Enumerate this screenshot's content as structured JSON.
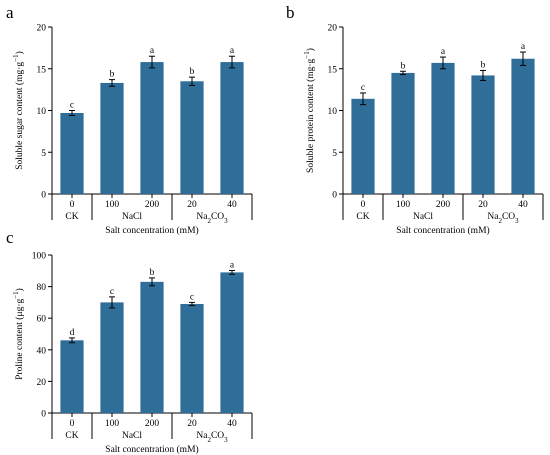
{
  "bar_color": "#2e6e99",
  "chart_data": [
    {
      "type": "bar",
      "panel": "a",
      "categories": [
        "0",
        "100",
        "200",
        "20",
        "40"
      ],
      "values": [
        9.7,
        13.3,
        15.8,
        13.5,
        15.8
      ],
      "errors": [
        0.3,
        0.4,
        0.7,
        0.5,
        0.7
      ],
      "significance": [
        "c",
        "b",
        "a",
        "b",
        "a"
      ],
      "groups": [
        {
          "label": "CK",
          "from": 0,
          "to": 0
        },
        {
          "label": "NaCl",
          "from": 1,
          "to": 2
        },
        {
          "label": "Na2CO3",
          "from": 3,
          "to": 4
        }
      ],
      "ylabel": "Soluble sugar content (mg·g⁻¹)",
      "xlabel": "Salt concentration (mM)",
      "ylim": [
        0,
        20
      ],
      "yticks": [
        0,
        5,
        10,
        15,
        20
      ]
    },
    {
      "type": "bar",
      "panel": "b",
      "categories": [
        "0",
        "100",
        "200",
        "20",
        "40"
      ],
      "values": [
        11.4,
        14.5,
        15.7,
        14.2,
        16.2
      ],
      "errors": [
        0.7,
        0.2,
        0.7,
        0.6,
        0.8
      ],
      "significance": [
        "c",
        "b",
        "a",
        "b",
        "a"
      ],
      "groups": [
        {
          "label": "CK",
          "from": 0,
          "to": 0
        },
        {
          "label": "NaCl",
          "from": 1,
          "to": 2
        },
        {
          "label": "Na2CO3",
          "from": 3,
          "to": 4
        }
      ],
      "ylabel": "Soluble protein content (mg·g⁻¹)",
      "xlabel": "Salt concentration (mM)",
      "ylim": [
        0,
        20
      ],
      "yticks": [
        0,
        5,
        10,
        15,
        20
      ]
    },
    {
      "type": "bar",
      "panel": "c",
      "categories": [
        "0",
        "100",
        "200",
        "20",
        "40"
      ],
      "values": [
        46,
        70,
        83,
        69,
        89
      ],
      "errors": [
        1.5,
        3.5,
        2.5,
        1.0,
        1.2
      ],
      "significance": [
        "d",
        "c",
        "b",
        "c",
        "a"
      ],
      "groups": [
        {
          "label": "CK",
          "from": 0,
          "to": 0
        },
        {
          "label": "NaCl",
          "from": 1,
          "to": 2
        },
        {
          "label": "Na2CO3",
          "from": 3,
          "to": 4
        }
      ],
      "ylabel": "Proline content (μg·g⁻¹)",
      "xlabel": "Salt concentration (mM)",
      "ylim": [
        0,
        100
      ],
      "yticks": [
        0,
        20,
        40,
        60,
        80,
        100
      ]
    }
  ]
}
